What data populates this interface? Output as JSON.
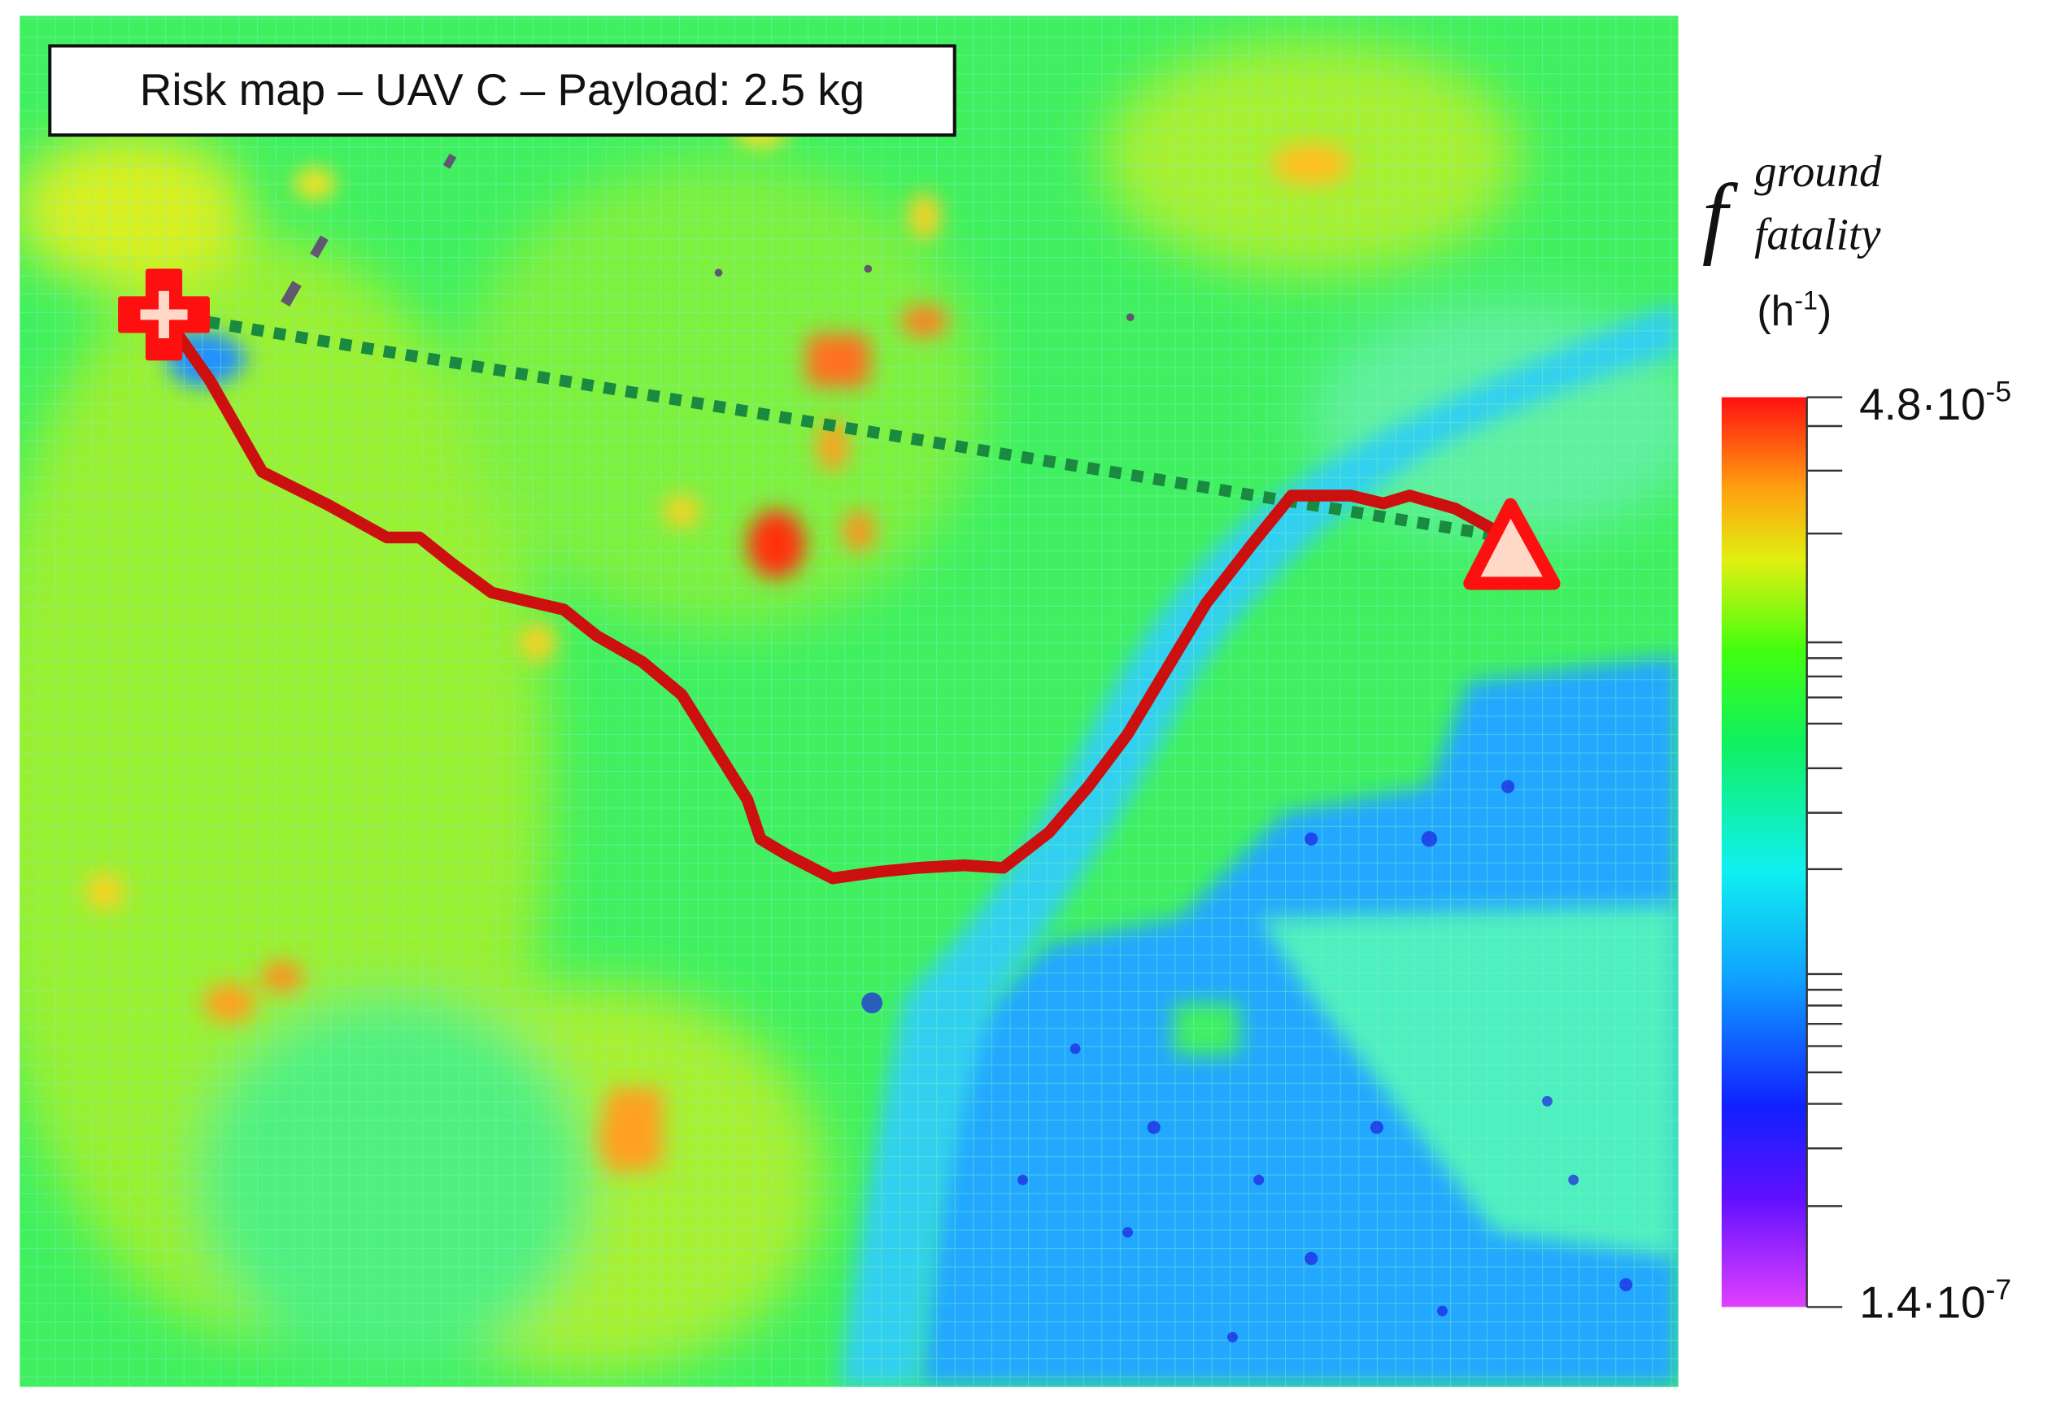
{
  "map": {
    "title": "Risk map – UAV C – Payload: 2.5 kg"
  },
  "colorbar": {
    "symbol": "f",
    "superscript": "ground",
    "subscript": "fatality",
    "unit_base": "(h",
    "unit_exponent": "-1",
    "unit_close": ")",
    "max_label": "4.8·10",
    "max_exponent": "-5",
    "min_label": "1.4·10",
    "min_exponent": "-7"
  }
}
